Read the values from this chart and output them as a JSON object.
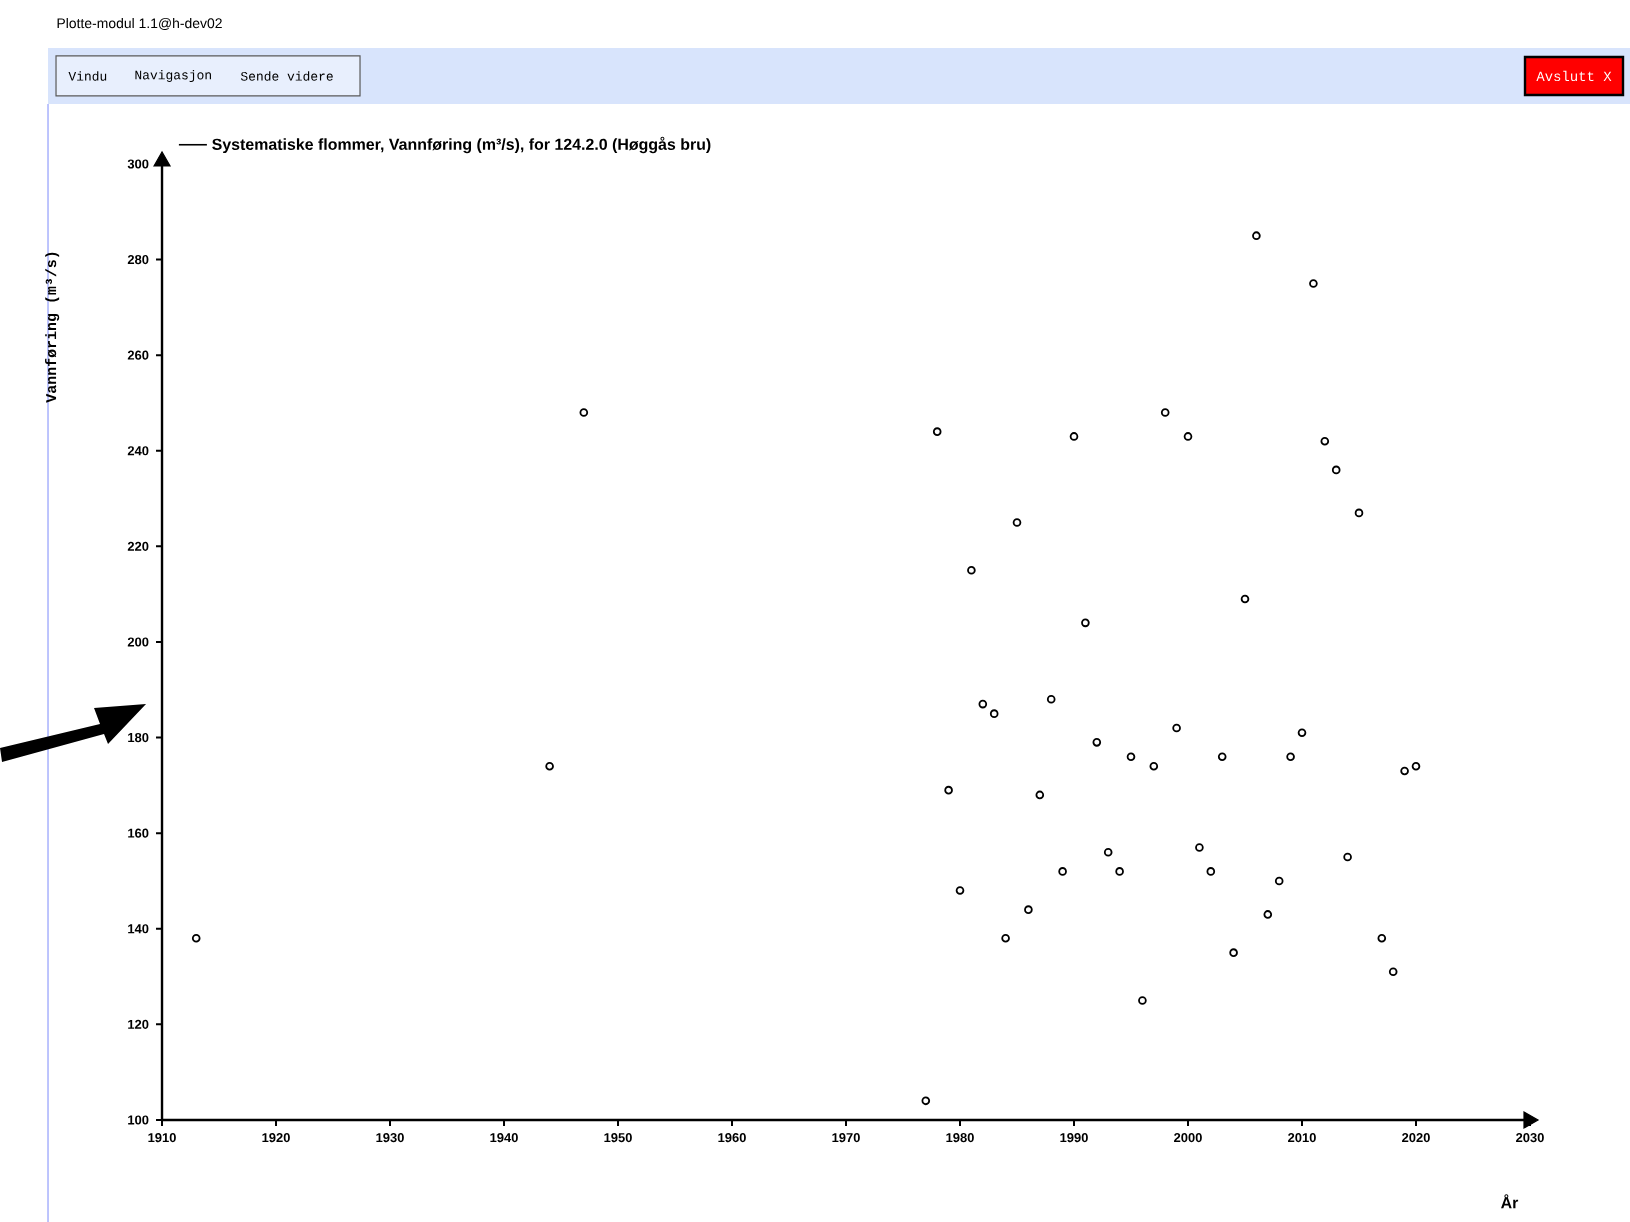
{
  "chart_data": {
    "type": "scatter",
    "annotations": [
      "Plotte-modul 1.1@h-dev02",
      "Vindu",
      "Navigasjon",
      "Sende videre",
      "Avslutt X"
    ],
    "xlabel": "År",
    "ylabel": "Vannføring (m³/s)",
    "xlim": [
      1910,
      2030
    ],
    "ylim": [
      100,
      300
    ],
    "xticks": [
      1910,
      1920,
      1930,
      1940,
      1950,
      1960,
      1970,
      1980,
      1990,
      2000,
      2010,
      2020,
      2030
    ],
    "yticks": [
      100,
      120,
      140,
      160,
      180,
      200,
      220,
      240,
      260,
      280,
      300
    ],
    "marker": "circle",
    "legend": "top left",
    "series": [
      {
        "name": "Systematiske flommer, Vannføring (m³/s), for 124.2.0 (Høggås bru)",
        "color": "#000000",
        "x": [
          1913,
          1944,
          1947,
          1977,
          1978,
          1979,
          1980,
          1981,
          1982,
          1983,
          1984,
          1985,
          1986,
          1987,
          1988,
          1989,
          1990,
          1991,
          1992,
          1993,
          1994,
          1995,
          1996,
          1997,
          1998,
          1999,
          2000,
          2001,
          2002,
          2003,
          2004,
          2005,
          2006,
          2007,
          2008,
          2009,
          2010,
          2011,
          2012,
          2013,
          2014,
          2015,
          2017,
          2018,
          2019,
          2020
        ],
        "values": [
          138,
          174,
          248,
          104,
          244,
          169,
          148,
          215,
          187,
          185,
          138,
          225,
          144,
          168,
          188,
          152,
          243,
          204,
          179,
          156,
          152,
          176,
          125,
          174,
          248,
          182,
          243,
          157,
          152,
          176,
          135,
          209,
          285,
          143,
          150,
          176,
          181,
          275,
          242,
          236,
          155,
          227,
          138,
          131,
          173,
          174
        ]
      }
    ]
  }
}
